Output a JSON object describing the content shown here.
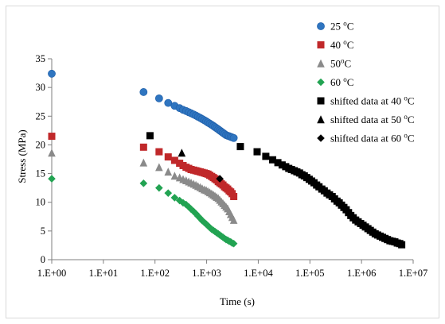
{
  "chart_data": {
    "type": "scatter",
    "xlabel": "Time (s)",
    "ylabel": "Stress (MPa)",
    "x_scale": "log",
    "xlim": [
      1,
      10000000
    ],
    "ylim": [
      0,
      35
    ],
    "x_ticks": [
      {
        "value": 1,
        "label": "1.E+00"
      },
      {
        "value": 10,
        "label": "1.E+01"
      },
      {
        "value": 100,
        "label": "1.E+02"
      },
      {
        "value": 1000,
        "label": "1.E+03"
      },
      {
        "value": 10000,
        "label": "1.E+04"
      },
      {
        "value": 100000,
        "label": "1.E+05"
      },
      {
        "value": 1000000,
        "label": "1.E+06"
      },
      {
        "value": 10000000,
        "label": "1.E+07"
      }
    ],
    "y_ticks": [
      {
        "value": 0,
        "label": "0"
      },
      {
        "value": 5,
        "label": "5"
      },
      {
        "value": 10,
        "label": "10"
      },
      {
        "value": 15,
        "label": "15"
      },
      {
        "value": 20,
        "label": "20"
      },
      {
        "value": 25,
        "label": "25"
      },
      {
        "value": 30,
        "label": "30"
      },
      {
        "value": 35,
        "label": "35"
      }
    ],
    "grid": false,
    "legend_position": "top-right",
    "series": [
      {
        "name": "25 °C",
        "label_main": "25 ",
        "label_sup": "o",
        "label_end": "C",
        "marker": "circle",
        "color": "#2f75c0",
        "points": [
          [
            1,
            32.4
          ],
          [
            60,
            29.2
          ],
          [
            120,
            28.1
          ],
          [
            180,
            27.3
          ],
          [
            240,
            26.8
          ],
          [
            300,
            26.4
          ],
          [
            350,
            26.1
          ],
          [
            400,
            25.9
          ],
          [
            450,
            25.7
          ],
          [
            500,
            25.5
          ],
          [
            560,
            25.3
          ],
          [
            620,
            25.1
          ],
          [
            680,
            24.9
          ],
          [
            750,
            24.7
          ],
          [
            820,
            24.5
          ],
          [
            900,
            24.3
          ],
          [
            980,
            24.1
          ],
          [
            1060,
            23.9
          ],
          [
            1150,
            23.7
          ],
          [
            1250,
            23.5
          ],
          [
            1350,
            23.3
          ],
          [
            1450,
            23.1
          ],
          [
            1560,
            22.9
          ],
          [
            1680,
            22.7
          ],
          [
            1800,
            22.5
          ],
          [
            1930,
            22.3
          ],
          [
            2070,
            22.1
          ],
          [
            2220,
            21.9
          ],
          [
            2380,
            21.7
          ],
          [
            2550,
            21.6
          ],
          [
            2730,
            21.5
          ],
          [
            2920,
            21.4
          ],
          [
            3120,
            21.3
          ],
          [
            3350,
            21.2
          ]
        ]
      },
      {
        "name": "40 °C",
        "label_main": "40 ",
        "label_sup": "o",
        "label_end": "C",
        "marker": "square",
        "color": "#c0282a",
        "points": [
          [
            1,
            21.5
          ],
          [
            60,
            19.6
          ],
          [
            120,
            18.8
          ],
          [
            180,
            17.9
          ],
          [
            240,
            17.3
          ],
          [
            300,
            16.8
          ],
          [
            350,
            16.4
          ],
          [
            400,
            16.1
          ],
          [
            450,
            15.9
          ],
          [
            500,
            15.7
          ],
          [
            560,
            15.6
          ],
          [
            620,
            15.5
          ],
          [
            680,
            15.4
          ],
          [
            750,
            15.3
          ],
          [
            820,
            15.2
          ],
          [
            900,
            15.1
          ],
          [
            980,
            15.0
          ],
          [
            1060,
            14.9
          ],
          [
            1150,
            14.7
          ],
          [
            1250,
            14.5
          ],
          [
            1350,
            14.3
          ],
          [
            1450,
            14.1
          ],
          [
            1560,
            13.9
          ],
          [
            1680,
            13.6
          ],
          [
            1800,
            13.4
          ],
          [
            1930,
            13.2
          ],
          [
            2070,
            13.0
          ],
          [
            2220,
            12.7
          ],
          [
            2380,
            12.5
          ],
          [
            2550,
            12.3
          ],
          [
            2730,
            12.0
          ],
          [
            2920,
            11.8
          ],
          [
            3120,
            11.5
          ],
          [
            3350,
            11.0
          ]
        ]
      },
      {
        "name": "50 °C",
        "label_main": "50",
        "label_sup": "o",
        "label_end": "C",
        "marker": "triangle",
        "color": "#8a8a8a",
        "points": [
          [
            1,
            18.6
          ],
          [
            60,
            16.9
          ],
          [
            120,
            16.1
          ],
          [
            180,
            15.3
          ],
          [
            240,
            14.6
          ],
          [
            300,
            14.3
          ],
          [
            350,
            14.0
          ],
          [
            400,
            13.8
          ],
          [
            450,
            13.6
          ],
          [
            500,
            13.4
          ],
          [
            560,
            13.2
          ],
          [
            620,
            13.0
          ],
          [
            680,
            12.8
          ],
          [
            750,
            12.6
          ],
          [
            820,
            12.4
          ],
          [
            900,
            12.2
          ],
          [
            980,
            12.1
          ],
          [
            1060,
            11.9
          ],
          [
            1150,
            11.7
          ],
          [
            1250,
            11.5
          ],
          [
            1350,
            11.3
          ],
          [
            1450,
            11.1
          ],
          [
            1560,
            10.9
          ],
          [
            1680,
            10.7
          ],
          [
            1800,
            10.4
          ],
          [
            1930,
            10.1
          ],
          [
            2070,
            9.8
          ],
          [
            2220,
            9.5
          ],
          [
            2380,
            9.2
          ],
          [
            2550,
            8.9
          ],
          [
            2730,
            8.4
          ],
          [
            2920,
            7.9
          ],
          [
            3120,
            7.4
          ],
          [
            3350,
            6.9
          ]
        ]
      },
      {
        "name": "60 °C",
        "label_main": "60 ",
        "label_sup": "o",
        "label_end": "C",
        "marker": "diamond",
        "color": "#22a352",
        "points": [
          [
            1,
            14.1
          ],
          [
            60,
            13.3
          ],
          [
            120,
            12.5
          ],
          [
            180,
            11.6
          ],
          [
            240,
            10.8
          ],
          [
            300,
            10.3
          ],
          [
            350,
            9.9
          ],
          [
            400,
            9.6
          ],
          [
            450,
            9.2
          ],
          [
            500,
            8.8
          ],
          [
            560,
            8.4
          ],
          [
            620,
            8.0
          ],
          [
            680,
            7.6
          ],
          [
            750,
            7.2
          ],
          [
            820,
            6.8
          ],
          [
            900,
            6.5
          ],
          [
            980,
            6.2
          ],
          [
            1060,
            5.9
          ],
          [
            1150,
            5.6
          ],
          [
            1250,
            5.3
          ],
          [
            1350,
            5.1
          ],
          [
            1450,
            4.9
          ],
          [
            1560,
            4.7
          ],
          [
            1680,
            4.5
          ],
          [
            1800,
            4.3
          ],
          [
            1930,
            4.1
          ],
          [
            2070,
            3.9
          ],
          [
            2220,
            3.7
          ],
          [
            2380,
            3.5
          ],
          [
            2550,
            3.4
          ],
          [
            2730,
            3.2
          ],
          [
            2920,
            3.1
          ],
          [
            3120,
            2.9
          ],
          [
            3350,
            2.8
          ]
        ]
      },
      {
        "name": "shifted data at 40 °C",
        "label_main": "shifted data at 40 ",
        "label_sup": "o",
        "label_end": "C",
        "marker": "square",
        "color": "#000000",
        "points": [
          [
            80,
            21.6
          ],
          [
            4500,
            19.7
          ],
          [
            9500,
            18.8
          ],
          [
            14000,
            18.0
          ],
          [
            19000,
            17.4
          ],
          [
            24000,
            16.9
          ],
          [
            29000,
            16.5
          ],
          [
            34000,
            16.2
          ],
          [
            39000,
            15.9
          ],
          [
            44000,
            15.7
          ],
          [
            50000,
            15.5
          ],
          [
            56000,
            15.3
          ],
          [
            63000,
            15.1
          ],
          [
            70000,
            14.8
          ],
          [
            78000,
            14.6
          ],
          [
            87000,
            14.3
          ],
          [
            97000,
            14.0
          ],
          [
            108000,
            13.7
          ],
          [
            120000,
            13.4
          ],
          [
            135000,
            13.0
          ],
          [
            150000,
            12.7
          ],
          [
            170000,
            12.3
          ],
          [
            190000,
            12.0
          ],
          [
            215000,
            11.6
          ],
          [
            240000,
            11.3
          ],
          [
            270000,
            11.0
          ],
          [
            300000,
            10.6
          ],
          [
            335000,
            10.2
          ],
          [
            370000,
            9.9
          ],
          [
            410000,
            9.5
          ],
          [
            455000,
            9.1
          ],
          [
            505000,
            8.7
          ],
          [
            560000,
            8.2
          ],
          [
            620000,
            7.7
          ],
          [
            690000,
            7.3
          ],
          [
            770000,
            6.9
          ],
          [
            860000,
            6.6
          ],
          [
            960000,
            6.3
          ],
          [
            1070000,
            6.0
          ],
          [
            1190000,
            5.7
          ],
          [
            1330000,
            5.4
          ],
          [
            1480000,
            5.1
          ],
          [
            1650000,
            4.8
          ],
          [
            1840000,
            4.5
          ],
          [
            2050000,
            4.3
          ],
          [
            2290000,
            4.1
          ],
          [
            2550000,
            3.9
          ],
          [
            2850000,
            3.7
          ],
          [
            3180000,
            3.5
          ],
          [
            3550000,
            3.3
          ],
          [
            3960000,
            3.2
          ],
          [
            4420000,
            3.1
          ],
          [
            4930000,
            2.9
          ],
          [
            5500000,
            2.8
          ],
          [
            6000000,
            2.6
          ]
        ]
      },
      {
        "name": "shifted data at 50 °C",
        "label_main": "shifted data at 50 ",
        "label_sup": "o",
        "label_end": "C",
        "marker": "triangle",
        "color": "#000000",
        "points": [
          [
            330,
            18.6
          ]
        ]
      },
      {
        "name": "shifted data at 60 °C",
        "label_main": "shifted data at 60 ",
        "label_sup": "o",
        "label_end": "C",
        "marker": "diamond",
        "color": "#000000",
        "points": [
          [
            1800,
            14.1
          ]
        ]
      }
    ]
  }
}
